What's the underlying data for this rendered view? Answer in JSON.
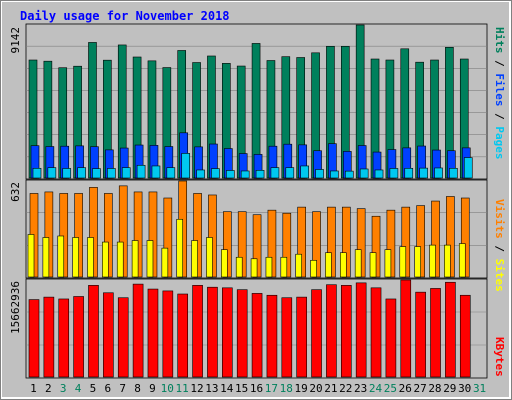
{
  "title": "Daily usage for November 2018",
  "colors": {
    "background": "#c0c0c0",
    "hits": "#00805c",
    "files": "#0040ff",
    "pages": "#00c8f0",
    "visits": "#ff8000",
    "sites": "#ffff00",
    "kbytes": "#ff0000",
    "title_color": "#0000ff",
    "day_label": "#000000",
    "weekend_label": "#00805c"
  },
  "axis_labels": {
    "top_max": "9142",
    "middle_max": "632",
    "bottom_max": "15662936"
  },
  "legend": {
    "top": [
      {
        "label": "Hits",
        "color": "#00805c"
      },
      {
        "label": "Files",
        "color": "#0040ff"
      },
      {
        "label": "Pages",
        "color": "#00c8f0"
      }
    ],
    "middle": [
      {
        "label": "Visits",
        "color": "#ff8000"
      },
      {
        "label": "Sites",
        "color": "#ffff00"
      }
    ],
    "bottom": [
      {
        "label": "KBytes",
        "color": "#ff0000"
      }
    ]
  },
  "chart_data": {
    "type": "bar",
    "title": "Daily usage for November 2018",
    "categories": [
      "1",
      "2",
      "3",
      "4",
      "5",
      "6",
      "7",
      "8",
      "9",
      "10",
      "11",
      "12",
      "13",
      "14",
      "15",
      "16",
      "17",
      "18",
      "19",
      "20",
      "21",
      "22",
      "23",
      "24",
      "25",
      "26",
      "27",
      "28",
      "29",
      "30",
      "31"
    ],
    "weekend_days": [
      "3",
      "4",
      "10",
      "11",
      "17",
      "18",
      "24",
      "25",
      "31"
    ],
    "panels": [
      {
        "name": "hits-files-pages",
        "ylim": [
          0,
          9142
        ],
        "series": [
          {
            "name": "Hits",
            "values": [
              7050,
              6980,
              6590,
              6680,
              8100,
              7040,
              7950,
              7230,
              7000,
              6600,
              7620,
              6900,
              7290,
              6850,
              6690,
              8040,
              7020,
              7250,
              7200,
              7480,
              7870,
              7870,
              9142,
              7110,
              7050,
              7720,
              6920,
              7050,
              7810,
              7110,
              0
            ]
          },
          {
            "name": "Files",
            "values": [
              1930,
              1880,
              1900,
              1920,
              1870,
              1680,
              1790,
              1970,
              1950,
              1880,
              2700,
              1860,
              2030,
              1760,
              1460,
              1410,
              1900,
              2020,
              1980,
              1630,
              2050,
              1590,
              1940,
              1550,
              1700,
              1800,
              1910,
              1670,
              1630,
              1800,
              0
            ]
          },
          {
            "name": "Pages",
            "values": [
              580,
              620,
              570,
              620,
              560,
              570,
              620,
              760,
              720,
              620,
              1470,
              480,
              560,
              450,
              420,
              460,
              620,
              620,
              720,
              510,
              420,
              410,
              540,
              480,
              570,
              580,
              590,
              600,
              580,
              1220,
              0
            ]
          }
        ]
      },
      {
        "name": "visits-sites",
        "ylim": [
          0,
          632
        ],
        "series": [
          {
            "name": "Visits",
            "values": [
              550,
              560,
              550,
              550,
              590,
              550,
              600,
              560,
              560,
              520,
              632,
              550,
              540,
              430,
              430,
              410,
              440,
              420,
              460,
              430,
              460,
              460,
              450,
              400,
              440,
              460,
              470,
              500,
              530,
              520,
              0
            ]
          },
          {
            "name": "Sites",
            "values": [
              280,
              260,
              270,
              260,
              260,
              230,
              230,
              240,
              240,
              190,
              380,
              240,
              260,
              180,
              130,
              120,
              130,
              130,
              150,
              110,
              160,
              160,
              180,
              160,
              180,
              200,
              200,
              210,
              210,
              220,
              0
            ]
          }
        ]
      },
      {
        "name": "kbytes",
        "ylim": [
          0,
          15662936
        ],
        "series": [
          {
            "name": "KBytes",
            "values": [
              12500000,
              12900000,
              12600000,
              13000000,
              14800000,
              13600000,
              12800000,
              15000000,
              14200000,
              13900000,
              13400000,
              14800000,
              14500000,
              14400000,
              14100000,
              13500000,
              13200000,
              12800000,
              12900000,
              14100000,
              14900000,
              14800000,
              15200000,
              14400000,
              12600000,
              15662936,
              13700000,
              14300000,
              15300000,
              13200000,
              0
            ]
          }
        ]
      }
    ]
  }
}
